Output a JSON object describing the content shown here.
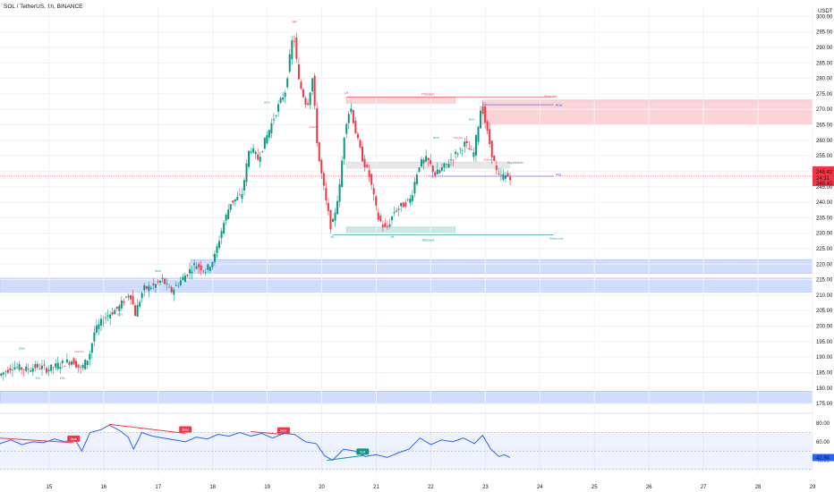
{
  "header": {
    "symbol": "SOL / TetherUS, 1h, BINANCE"
  },
  "currency": "USDT",
  "chart_data": {
    "type": "candlestick",
    "symbol": "SOL / TetherUS",
    "interval": "1h",
    "exchange": "BINANCE",
    "price_axis": {
      "ticks": [
        300,
        295,
        290,
        285,
        280,
        275,
        270,
        265,
        260,
        255,
        250,
        245,
        240,
        235,
        230,
        225,
        220,
        215,
        210,
        205,
        200,
        195,
        190,
        185,
        180,
        175
      ],
      "ylim": [
        173,
        303
      ]
    },
    "date_axis": {
      "labels": [
        "15",
        "16",
        "17",
        "18",
        "19",
        "20",
        "21",
        "22",
        "23",
        "24",
        "25",
        "26",
        "27",
        "28",
        "29"
      ],
      "xlim": [
        14.1,
        29
      ]
    },
    "price_path": [
      [
        14.1,
        184
      ],
      [
        14.35,
        187
      ],
      [
        14.6,
        186
      ],
      [
        14.8,
        187
      ],
      [
        15.0,
        186
      ],
      [
        15.2,
        187.5
      ],
      [
        15.45,
        189
      ],
      [
        15.6,
        186
      ],
      [
        15.75,
        190
      ],
      [
        15.85,
        198
      ],
      [
        16.05,
        203
      ],
      [
        16.3,
        206
      ],
      [
        16.5,
        211
      ],
      [
        16.6,
        204
      ],
      [
        16.75,
        212
      ],
      [
        16.95,
        213
      ],
      [
        17.1,
        215
      ],
      [
        17.25,
        211
      ],
      [
        17.45,
        215
      ],
      [
        17.7,
        220
      ],
      [
        17.9,
        218
      ],
      [
        18.05,
        222
      ],
      [
        18.2,
        232
      ],
      [
        18.35,
        240
      ],
      [
        18.55,
        242
      ],
      [
        18.7,
        258
      ],
      [
        18.85,
        254
      ],
      [
        19.05,
        263
      ],
      [
        19.2,
        270
      ],
      [
        19.35,
        276
      ],
      [
        19.5,
        295
      ],
      [
        19.6,
        279
      ],
      [
        19.75,
        271
      ],
      [
        19.85,
        280
      ],
      [
        19.95,
        256
      ],
      [
        20.1,
        240
      ],
      [
        20.2,
        231
      ],
      [
        20.35,
        245
      ],
      [
        20.45,
        265
      ],
      [
        20.55,
        271
      ],
      [
        20.65,
        262
      ],
      [
        20.75,
        255
      ],
      [
        20.9,
        248
      ],
      [
        21.05,
        235
      ],
      [
        21.2,
        231
      ],
      [
        21.35,
        237
      ],
      [
        21.5,
        239
      ],
      [
        21.65,
        241
      ],
      [
        21.8,
        252
      ],
      [
        21.95,
        254
      ],
      [
        22.1,
        249
      ],
      [
        22.3,
        252
      ],
      [
        22.5,
        256
      ],
      [
        22.65,
        259
      ],
      [
        22.8,
        255
      ],
      [
        22.9,
        266
      ],
      [
        22.95,
        272
      ],
      [
        23.05,
        263
      ],
      [
        23.15,
        255
      ],
      [
        23.25,
        248
      ],
      [
        23.35,
        248.5
      ],
      [
        23.45,
        248.42
      ]
    ],
    "last_price": {
      "value": "248.42",
      "countdown": "24:31",
      "value2": "248.42"
    },
    "annotations": {
      "HH": {
        "label": "HH",
        "x": 19.5,
        "y": 298
      },
      "LH": {
        "label": "LH",
        "x": 20.45,
        "y": 275
      },
      "HL1": {
        "label": "HL",
        "x": 20.2,
        "y": 228.5
      },
      "HL2": {
        "label": "HL",
        "x": 21.3,
        "y": 228.5
      },
      "premium": {
        "label": "Premium",
        "x": 21.95,
        "y": 274.5
      },
      "discount": {
        "label": "Discount",
        "x": 21.95,
        "y": 227.5
      },
      "equilibrium": {
        "label": "Equilibrium",
        "x": 23.55,
        "y": 252.5
      },
      "strong_high": {
        "label": "Weak High",
        "x": 24.2,
        "y": 274
      },
      "strong_low": {
        "label": "Strong Low",
        "x": 24.3,
        "y": 228
      },
      "PDH": {
        "label": "PDH",
        "x": 24.35,
        "y": 271
      },
      "PDL": {
        "label": "PDL",
        "x": 24.35,
        "y": 248.5
      },
      "bos": [
        {
          "label": "BOS",
          "x": 19.0,
          "y": 272
        },
        {
          "label": "BOS",
          "x": 16.3,
          "y": 203.5
        },
        {
          "label": "BOS",
          "x": 17.0,
          "y": 217.5
        },
        {
          "label": "BOS",
          "x": 18.05,
          "y": 222.5
        },
        {
          "label": "BOS",
          "x": 22.75,
          "y": 266.5
        },
        {
          "label": "BOS",
          "x": 22.1,
          "y": 260.5
        }
      ],
      "choch": [
        {
          "label": "CHoCH",
          "x": 19.85,
          "y": 264
        },
        {
          "label": "CHoCH",
          "x": 22.5,
          "y": 260.5
        },
        {
          "label": "CHoCH",
          "x": 23.05,
          "y": 253.5
        },
        {
          "label": "CHoCH",
          "x": 15.55,
          "y": 191.5
        }
      ],
      "swings": [
        {
          "label": "EQL",
          "x": 14.8,
          "y": 183
        },
        {
          "label": "EQL",
          "x": 15.25,
          "y": 183
        },
        {
          "label": "EQH",
          "x": 14.5,
          "y": 192.5
        }
      ]
    },
    "zones": [
      {
        "name": "premium-zone",
        "x0": 20.45,
        "x1": 22.45,
        "y0": 272,
        "y1": 274,
        "color": "#f23645"
      },
      {
        "name": "discount-zone",
        "x0": 20.45,
        "x1": 22.45,
        "y0": 230,
        "y1": 232,
        "color": "#089981"
      },
      {
        "name": "equilibrium-zone",
        "x0": 20.45,
        "x1": 23.45,
        "y0": 251,
        "y1": 253,
        "color": "#9598a1"
      },
      {
        "name": "supply-zone",
        "x0": 22.95,
        "x1": 29,
        "y0": 265,
        "y1": 273,
        "color": "#f23645"
      },
      {
        "name": "demand-zone-1",
        "x0": 17.6,
        "x1": 29,
        "y0": 217,
        "y1": 221.5,
        "color": "#2962ff"
      },
      {
        "name": "demand-zone-2",
        "x0": 14.1,
        "x1": 29,
        "y0": 211,
        "y1": 215.5,
        "color": "#2962ff"
      },
      {
        "name": "demand-zone-3",
        "x0": 14.1,
        "x1": 29,
        "y0": 175,
        "y1": 179,
        "color": "#2962ff"
      }
    ],
    "rsi": {
      "ticks": [
        80,
        60,
        40
      ],
      "ylim": [
        25,
        85
      ],
      "last": "42.94",
      "path": [
        [
          14.1,
          58
        ],
        [
          14.3,
          62
        ],
        [
          14.5,
          57
        ],
        [
          14.7,
          60
        ],
        [
          14.9,
          59
        ],
        [
          15.1,
          63
        ],
        [
          15.3,
          60
        ],
        [
          15.45,
          65
        ],
        [
          15.6,
          50
        ],
        [
          15.75,
          70
        ],
        [
          15.95,
          73
        ],
        [
          16.1,
          78
        ],
        [
          16.3,
          72
        ],
        [
          16.45,
          65
        ],
        [
          16.55,
          52
        ],
        [
          16.7,
          70
        ],
        [
          16.9,
          66
        ],
        [
          17.1,
          64
        ],
        [
          17.3,
          62
        ],
        [
          17.5,
          60
        ],
        [
          17.7,
          65
        ],
        [
          17.9,
          63
        ],
        [
          18.1,
          68
        ],
        [
          18.3,
          66
        ],
        [
          18.5,
          70
        ],
        [
          18.7,
          66
        ],
        [
          18.9,
          69
        ],
        [
          19.1,
          64
        ],
        [
          19.3,
          69
        ],
        [
          19.5,
          68
        ],
        [
          19.7,
          60
        ],
        [
          19.9,
          58
        ],
        [
          20.05,
          45
        ],
        [
          20.2,
          40
        ],
        [
          20.4,
          52
        ],
        [
          20.6,
          50
        ],
        [
          20.8,
          44
        ],
        [
          21.0,
          46
        ],
        [
          21.2,
          43
        ],
        [
          21.4,
          48
        ],
        [
          21.6,
          52
        ],
        [
          21.8,
          64
        ],
        [
          22.0,
          57
        ],
        [
          22.2,
          62
        ],
        [
          22.4,
          60
        ],
        [
          22.6,
          64
        ],
        [
          22.8,
          58
        ],
        [
          22.95,
          67
        ],
        [
          23.1,
          52
        ],
        [
          23.25,
          44
        ],
        [
          23.35,
          46
        ],
        [
          23.45,
          43
        ]
      ],
      "divergences": [
        {
          "label": "Bear",
          "x0": 14.1,
          "y0": 64,
          "x1": 15.45,
          "y1": 59,
          "color": "#f23645"
        },
        {
          "label": "Bear",
          "x0": 16.1,
          "y0": 79,
          "x1": 17.5,
          "y1": 69,
          "color": "#f23645"
        },
        {
          "label": "Bear",
          "x0": 18.7,
          "y0": 71,
          "x1": 19.3,
          "y1": 68,
          "color": "#f23645"
        },
        {
          "label": "Bull",
          "x0": 20.1,
          "y0": 40,
          "x1": 20.75,
          "y1": 45,
          "color": "#089981"
        }
      ]
    }
  }
}
